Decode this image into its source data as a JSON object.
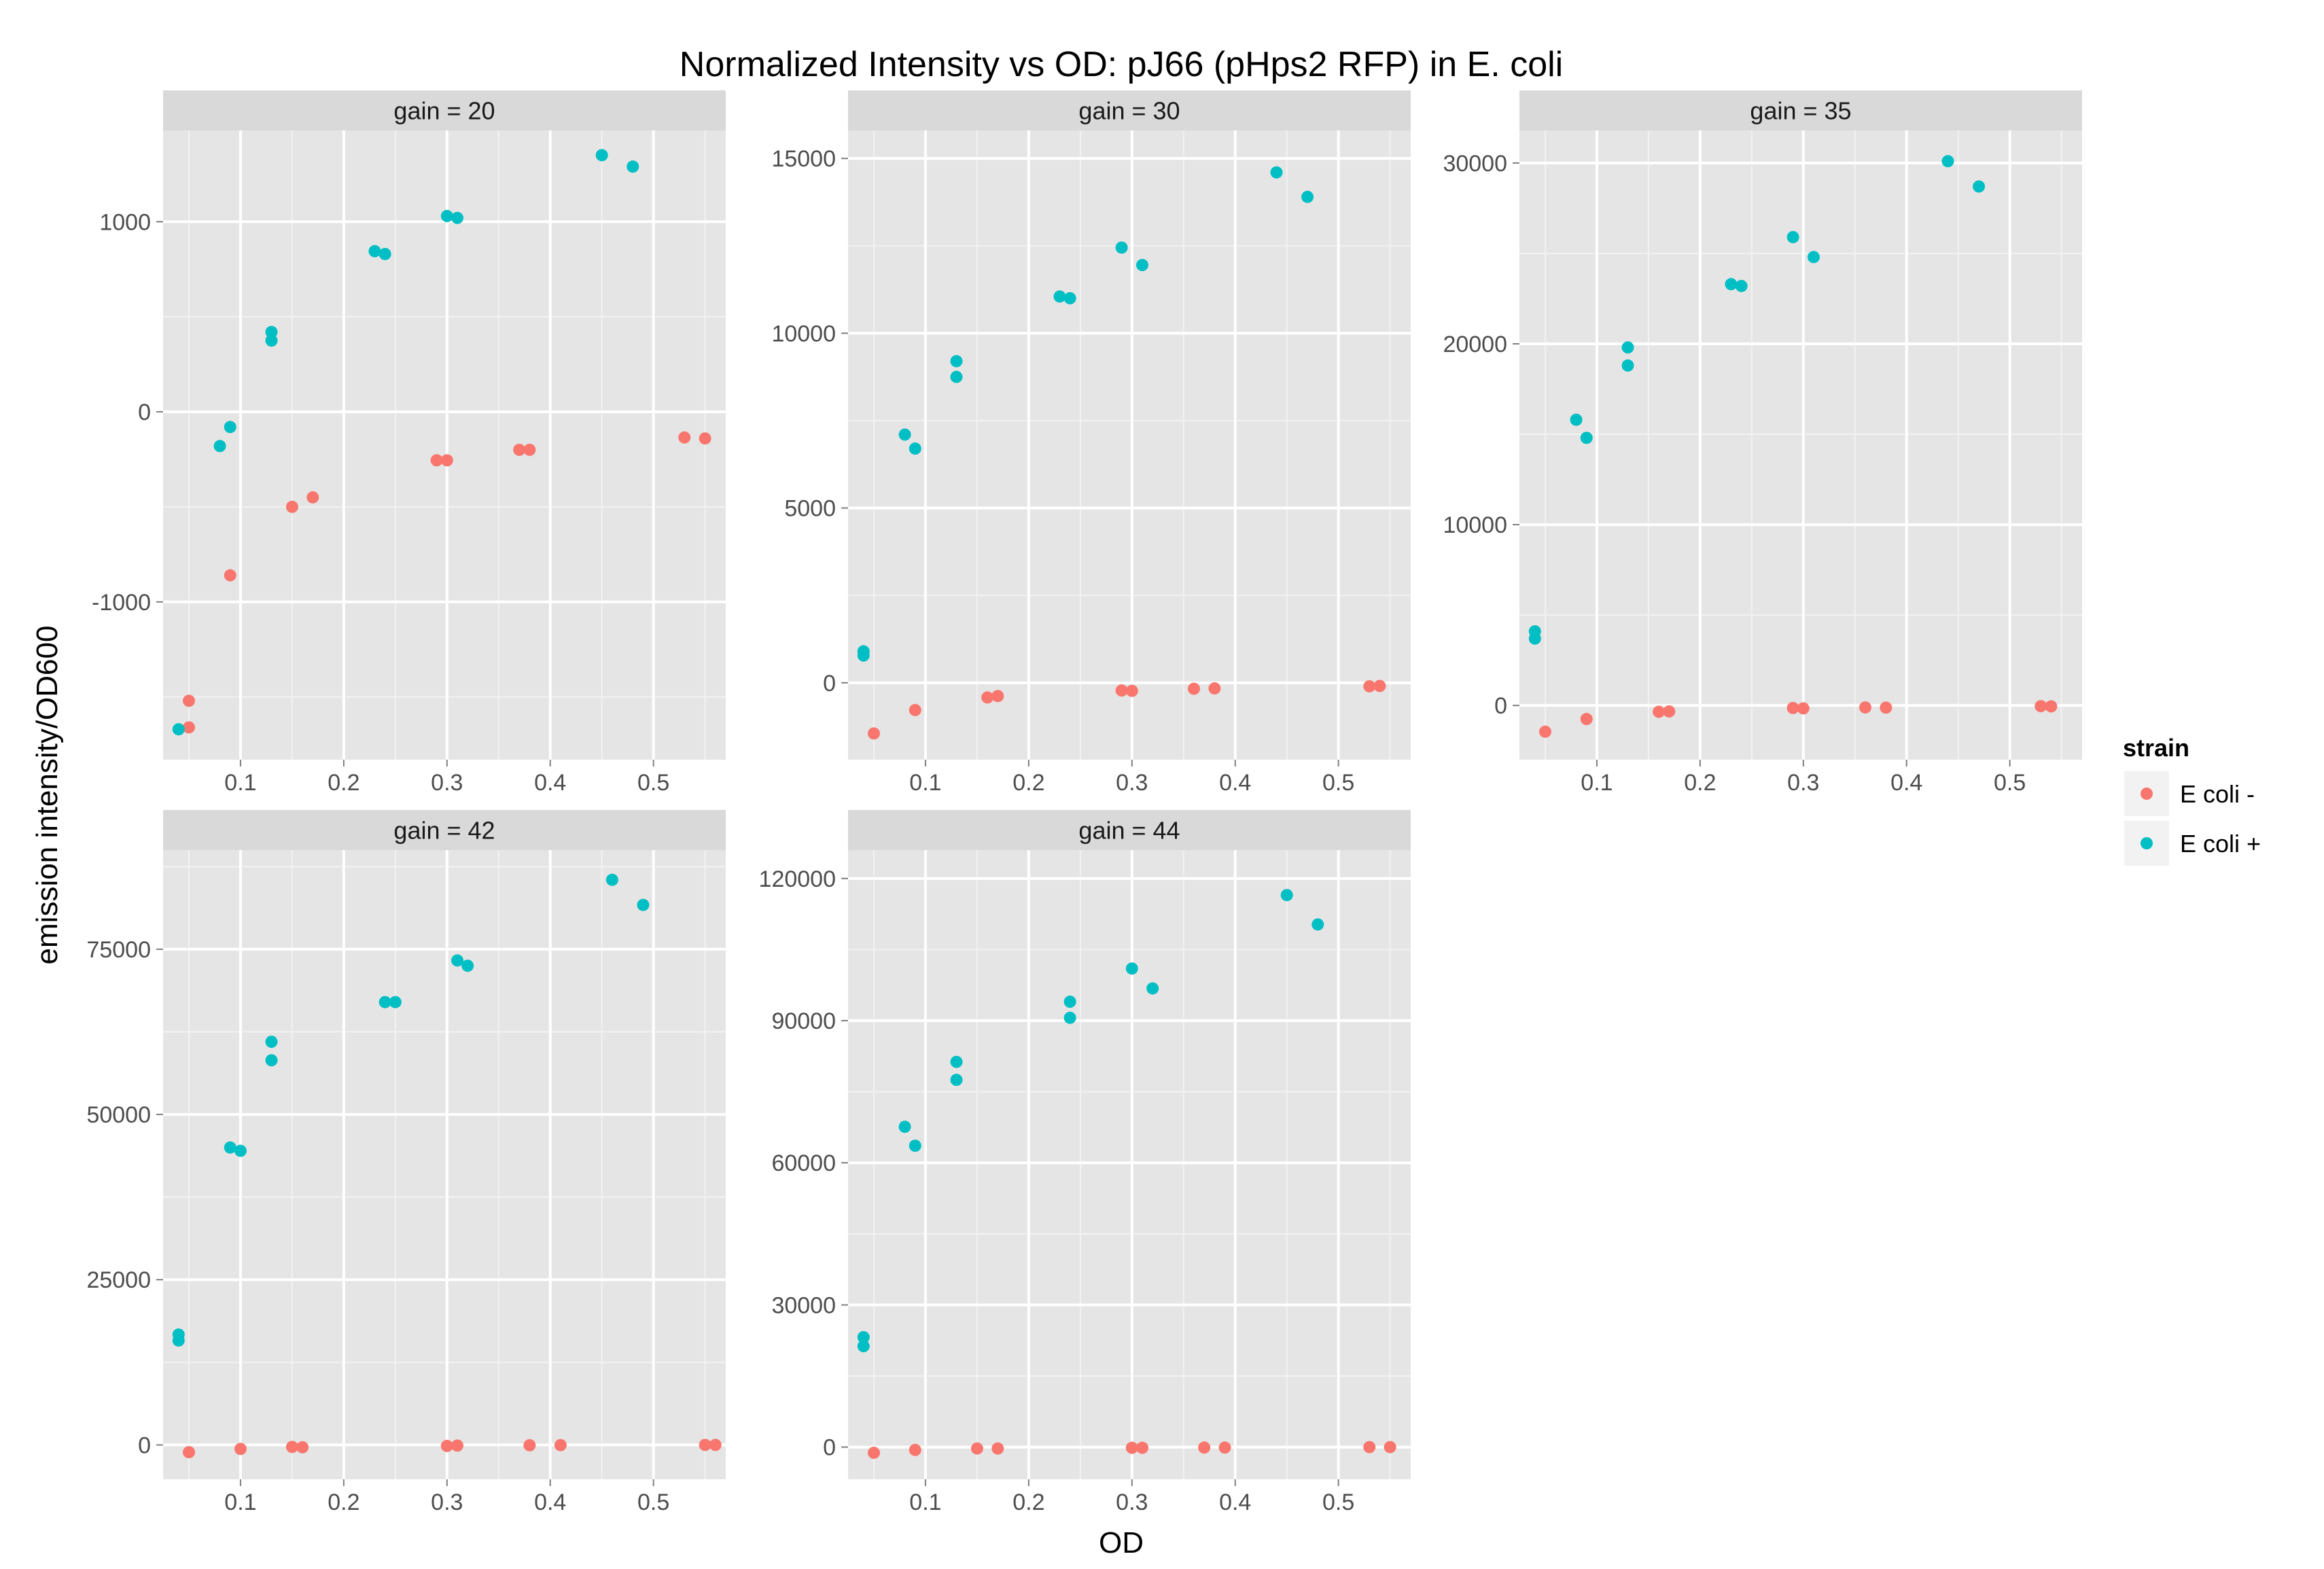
{
  "chart_data": {
    "type": "scatter",
    "title": "Normalized Intensity vs OD: pJ66 (pHps2 RFP) in E. coli",
    "xlabel": "OD",
    "ylabel": "emission intensity/OD600",
    "legend": {
      "title": "strain",
      "placement": "right",
      "entries": [
        {
          "name": "E coli -",
          "color": "#f8766d"
        },
        {
          "name": "E coli +",
          "color": "#00bfc4"
        }
      ]
    },
    "panels": [
      {
        "label": "gain =  20",
        "xlim": [
          0.025,
          0.57
        ],
        "ylim": [
          -1830,
          1480
        ],
        "x_ticks": [
          0.1,
          0.2,
          0.3,
          0.4,
          0.5
        ],
        "x_tick_labels": [
          "0.1",
          "0.2",
          "0.3",
          "0.4",
          "0.5"
        ],
        "y_ticks": [
          -1000,
          0,
          1000
        ],
        "y_tick_labels": [
          "-1000",
          "0",
          "1000"
        ],
        "series": [
          {
            "name": "E coli -",
            "color": "#f8766d",
            "points": [
              [
                0.05,
                -1520
              ],
              [
                0.05,
                -1660
              ],
              [
                0.09,
                -860
              ],
              [
                0.15,
                -500
              ],
              [
                0.17,
                -450
              ],
              [
                0.29,
                -255
              ],
              [
                0.3,
                -255
              ],
              [
                0.37,
                -200
              ],
              [
                0.38,
                -200
              ],
              [
                0.53,
                -135
              ],
              [
                0.55,
                -140
              ]
            ]
          },
          {
            "name": "E coli +",
            "color": "#00bfc4",
            "points": [
              [
                0.04,
                -1670
              ],
              [
                0.08,
                -180
              ],
              [
                0.09,
                -80
              ],
              [
                0.13,
                420
              ],
              [
                0.13,
                375
              ],
              [
                0.23,
                845
              ],
              [
                0.24,
                830
              ],
              [
                0.3,
                1030
              ],
              [
                0.31,
                1020
              ],
              [
                0.45,
                1350
              ],
              [
                0.48,
                1290
              ]
            ]
          }
        ]
      },
      {
        "label": "gain =  30",
        "xlim": [
          0.025,
          0.57
        ],
        "ylim": [
          -2200,
          15800
        ],
        "x_ticks": [
          0.1,
          0.2,
          0.3,
          0.4,
          0.5
        ],
        "x_tick_labels": [
          "0.1",
          "0.2",
          "0.3",
          "0.4",
          "0.5"
        ],
        "y_ticks": [
          0,
          5000,
          10000,
          15000
        ],
        "y_tick_labels": [
          "0",
          "5000",
          "10000",
          "15000"
        ],
        "series": [
          {
            "name": "E coli -",
            "color": "#f8766d",
            "points": [
              [
                0.05,
                -1450
              ],
              [
                0.09,
                -780
              ],
              [
                0.16,
                -420
              ],
              [
                0.17,
                -380
              ],
              [
                0.29,
                -220
              ],
              [
                0.3,
                -230
              ],
              [
                0.36,
                -170
              ],
              [
                0.38,
                -160
              ],
              [
                0.53,
                -100
              ],
              [
                0.54,
                -90
              ]
            ]
          },
          {
            "name": "E coli +",
            "color": "#00bfc4",
            "points": [
              [
                0.04,
                900
              ],
              [
                0.04,
                780
              ],
              [
                0.08,
                7100
              ],
              [
                0.09,
                6700
              ],
              [
                0.13,
                9200
              ],
              [
                0.13,
                8750
              ],
              [
                0.23,
                11050
              ],
              [
                0.24,
                11000
              ],
              [
                0.29,
                12450
              ],
              [
                0.31,
                11950
              ],
              [
                0.44,
                14600
              ],
              [
                0.47,
                13900
              ]
            ]
          }
        ]
      },
      {
        "label": "gain =  35",
        "xlim": [
          0.025,
          0.57
        ],
        "ylim": [
          -3000,
          31800
        ],
        "x_ticks": [
          0.1,
          0.2,
          0.3,
          0.4,
          0.5
        ],
        "x_tick_labels": [
          "0.1",
          "0.2",
          "0.3",
          "0.4",
          "0.5"
        ],
        "y_ticks": [
          0,
          10000,
          20000,
          30000
        ],
        "y_tick_labels": [
          "0",
          "10000",
          "20000",
          "30000"
        ],
        "series": [
          {
            "name": "E coli -",
            "color": "#f8766d",
            "points": [
              [
                0.05,
                -1450
              ],
              [
                0.09,
                -750
              ],
              [
                0.16,
                -350
              ],
              [
                0.17,
                -330
              ],
              [
                0.29,
                -140
              ],
              [
                0.3,
                -160
              ],
              [
                0.36,
                -110
              ],
              [
                0.38,
                -120
              ],
              [
                0.53,
                -40
              ],
              [
                0.54,
                -50
              ]
            ]
          },
          {
            "name": "E coli +",
            "color": "#00bfc4",
            "points": [
              [
                0.04,
                4100
              ],
              [
                0.04,
                3700
              ],
              [
                0.08,
                15800
              ],
              [
                0.09,
                14800
              ],
              [
                0.13,
                19800
              ],
              [
                0.13,
                18800
              ],
              [
                0.23,
                23300
              ],
              [
                0.24,
                23200
              ],
              [
                0.29,
                25900
              ],
              [
                0.31,
                24800
              ],
              [
                0.44,
                30100
              ],
              [
                0.47,
                28700
              ]
            ]
          }
        ]
      },
      {
        "label": "gain =  42",
        "xlim": [
          0.025,
          0.57
        ],
        "ylim": [
          -5200,
          90000
        ],
        "x_ticks": [
          0.1,
          0.2,
          0.3,
          0.4,
          0.5
        ],
        "x_tick_labels": [
          "0.1",
          "0.2",
          "0.3",
          "0.4",
          "0.5"
        ],
        "y_ticks": [
          0,
          25000,
          50000,
          75000
        ],
        "y_tick_labels": [
          "0",
          "25000",
          "50000",
          "75000"
        ],
        "series": [
          {
            "name": "E coli -",
            "color": "#f8766d",
            "points": [
              [
                0.05,
                -1100
              ],
              [
                0.1,
                -600
              ],
              [
                0.15,
                -300
              ],
              [
                0.16,
                -350
              ],
              [
                0.3,
                -150
              ],
              [
                0.31,
                -100
              ],
              [
                0.38,
                -50
              ],
              [
                0.41,
                -30
              ],
              [
                0.55,
                0
              ],
              [
                0.56,
                0
              ]
            ]
          },
          {
            "name": "E coli +",
            "color": "#00bfc4",
            "points": [
              [
                0.04,
                16700
              ],
              [
                0.04,
                15800
              ],
              [
                0.09,
                45000
              ],
              [
                0.1,
                44500
              ],
              [
                0.13,
                61000
              ],
              [
                0.13,
                58200
              ],
              [
                0.24,
                67000
              ],
              [
                0.25,
                67000
              ],
              [
                0.31,
                73300
              ],
              [
                0.32,
                72500
              ],
              [
                0.46,
                85500
              ],
              [
                0.49,
                81700
              ]
            ]
          }
        ]
      },
      {
        "label": "gain =  44",
        "xlim": [
          0.025,
          0.57
        ],
        "ylim": [
          -6800,
          126000
        ],
        "x_ticks": [
          0.1,
          0.2,
          0.3,
          0.4,
          0.5
        ],
        "x_tick_labels": [
          "0.1",
          "0.2",
          "0.3",
          "0.4",
          "0.5"
        ],
        "y_ticks": [
          0,
          30000,
          60000,
          90000,
          120000
        ],
        "y_tick_labels": [
          "0",
          "30000",
          "60000",
          "90000",
          "120000"
        ],
        "series": [
          {
            "name": "E coli -",
            "color": "#f8766d",
            "points": [
              [
                0.05,
                -1200
              ],
              [
                0.09,
                -600
              ],
              [
                0.15,
                -300
              ],
              [
                0.17,
                -300
              ],
              [
                0.3,
                -150
              ],
              [
                0.31,
                -150
              ],
              [
                0.37,
                -100
              ],
              [
                0.39,
                -100
              ],
              [
                0.53,
                0
              ],
              [
                0.55,
                0
              ]
            ]
          },
          {
            "name": "E coli +",
            "color": "#00bfc4",
            "points": [
              [
                0.04,
                23200
              ],
              [
                0.04,
                21300
              ],
              [
                0.08,
                67600
              ],
              [
                0.09,
                63600
              ],
              [
                0.13,
                81300
              ],
              [
                0.13,
                77500
              ],
              [
                0.24,
                94000
              ],
              [
                0.24,
                90600
              ],
              [
                0.3,
                101000
              ],
              [
                0.32,
                96800
              ],
              [
                0.45,
                116500
              ],
              [
                0.48,
                110300
              ]
            ]
          }
        ]
      }
    ]
  }
}
